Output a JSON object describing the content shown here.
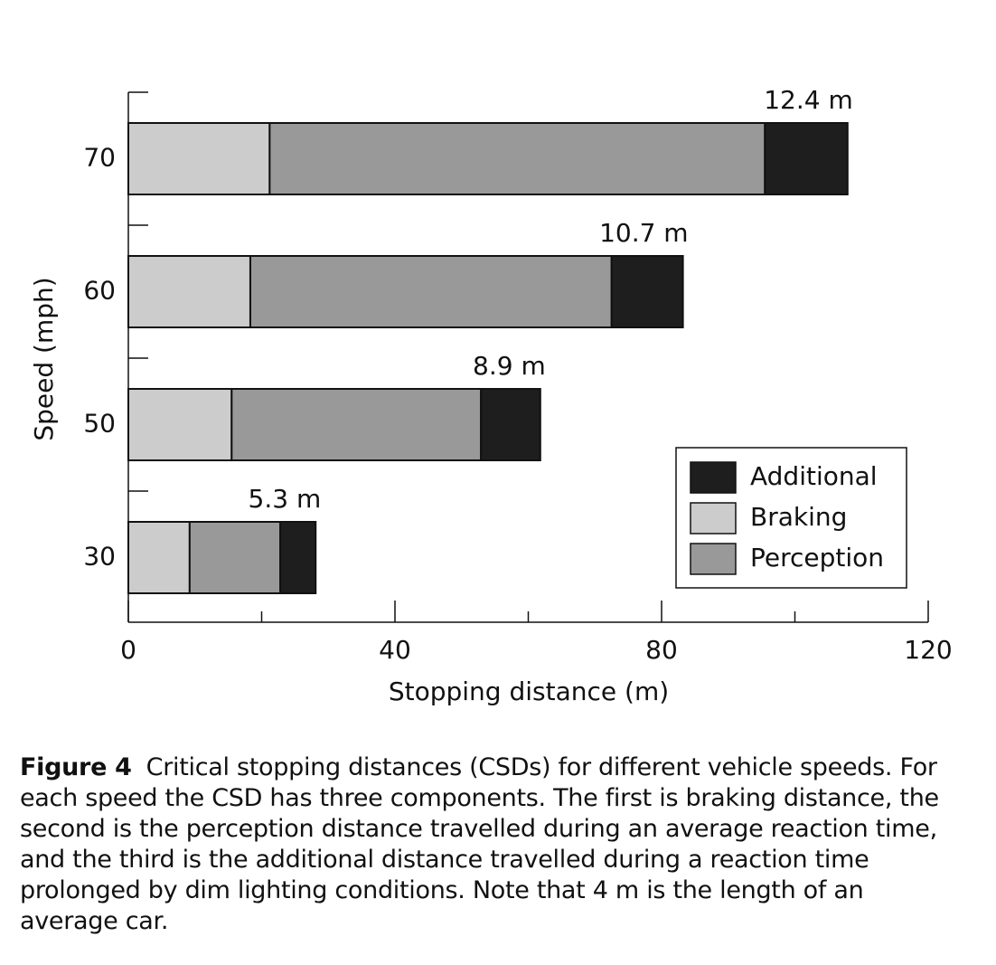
{
  "chart_data": {
    "type": "stacked-barh",
    "categories": [
      "30",
      "50",
      "60",
      "70"
    ],
    "series": [
      {
        "name": "Braking",
        "color": "#cccccc",
        "values": [
          9.2,
          15.5,
          18.3,
          21.2
        ]
      },
      {
        "name": "Perception",
        "color": "#999999",
        "values": [
          13.6,
          37.4,
          54.2,
          74.3
        ]
      },
      {
        "name": "Additional",
        "color": "#1e1e1e",
        "values": [
          5.3,
          8.9,
          10.7,
          12.4
        ],
        "value_labels": [
          "5.3 m",
          "8.9 m",
          "10.7 m",
          "12.4 m"
        ]
      }
    ],
    "xlabel": "Stopping distance (m)",
    "ylabel": "Speed (mph)",
    "xlim": [
      0,
      120
    ],
    "xticks": [
      0,
      40,
      80,
      120
    ],
    "xminorticks": [
      20,
      60,
      100
    ],
    "legend": "lower right"
  },
  "caption": {
    "label": "Figure 4",
    "text": "Critical stopping distances (CSDs) for different vehicle speeds. For each speed the CSD has three components. The first is braking distance, the second is the perception distance travelled during an average reaction time, and the third is the additional distance travelled during a reaction time prolonged by dim lighting conditions. Note that 4 m is the length of an average car."
  }
}
